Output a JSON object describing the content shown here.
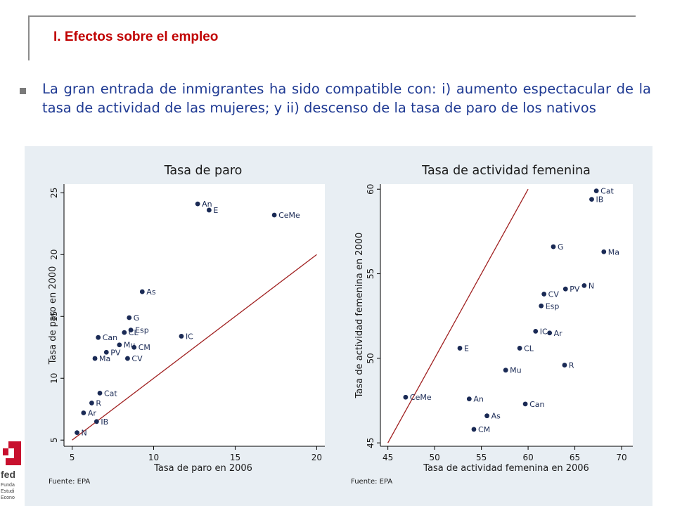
{
  "header": {
    "title": "I. Efectos sobre el empleo"
  },
  "bullet": {
    "text": "La gran entrada de inmigrantes ha sido compatible con: i) aumento espectacular de la tasa de actividad de las mujeres; y ii) descenso de la tasa de paro de los nativos"
  },
  "colors": {
    "title": "#c00000",
    "bullet_text": "#1f3a93",
    "panel_bg": "#e8eef3",
    "marker": "#1a2a55",
    "fit_line": "#a02020"
  },
  "logo": {
    "lines": [
      "fed",
      "Funda",
      "Estudi",
      "Econo"
    ]
  },
  "chart_data": [
    {
      "type": "scatter",
      "title": "Tasa de paro",
      "xlabel": "Tasa de paro en 2006",
      "ylabel": "Tasa de paro en 2000",
      "xlim": [
        4.5,
        20.5
      ],
      "ylim": [
        4.5,
        25.7
      ],
      "xticks": [
        5,
        10,
        15,
        20
      ],
      "yticks": [
        5,
        10,
        15,
        20,
        25
      ],
      "reference_line": {
        "x": [
          5,
          20
        ],
        "y": [
          5,
          20
        ]
      },
      "points": [
        {
          "label": "An",
          "x": 12.7,
          "y": 24.1
        },
        {
          "label": "E",
          "x": 13.4,
          "y": 23.6
        },
        {
          "label": "CeMe",
          "x": 17.4,
          "y": 23.2
        },
        {
          "label": "As",
          "x": 9.3,
          "y": 17.0
        },
        {
          "label": "G",
          "x": 8.5,
          "y": 14.9
        },
        {
          "label": "Esp",
          "x": 8.6,
          "y": 13.9
        },
        {
          "label": "CL",
          "x": 8.2,
          "y": 13.7
        },
        {
          "label": "IC",
          "x": 11.7,
          "y": 13.4
        },
        {
          "label": "Can",
          "x": 6.6,
          "y": 13.3
        },
        {
          "label": "Mu",
          "x": 7.9,
          "y": 12.7
        },
        {
          "label": "CM",
          "x": 8.8,
          "y": 12.5
        },
        {
          "label": "PV",
          "x": 7.1,
          "y": 12.1
        },
        {
          "label": "Ma",
          "x": 6.4,
          "y": 11.6
        },
        {
          "label": "CV",
          "x": 8.4,
          "y": 11.6
        },
        {
          "label": "Cat",
          "x": 6.7,
          "y": 8.8
        },
        {
          "label": "R",
          "x": 6.2,
          "y": 8.0
        },
        {
          "label": "Ar",
          "x": 5.7,
          "y": 7.2
        },
        {
          "label": "IB",
          "x": 6.5,
          "y": 6.5
        },
        {
          "label": "N",
          "x": 5.3,
          "y": 5.6
        }
      ],
      "source": "Fuente: EPA"
    },
    {
      "type": "scatter",
      "title": "Tasa de actividad femenina",
      "xlabel": "Tasa de actividad femenina en 2006",
      "ylabel": "Tasa de actividad femenina en 2000",
      "xlim": [
        44.2,
        71.2
      ],
      "ylim": [
        44.8,
        60.3
      ],
      "xticks": [
        45,
        50,
        55,
        60,
        65,
        70
      ],
      "yticks": [
        45,
        50,
        55,
        60
      ],
      "reference_line": {
        "x": [
          45,
          60
        ],
        "y": [
          45,
          60
        ]
      },
      "points": [
        {
          "label": "Cat",
          "x": 67.3,
          "y": 59.9
        },
        {
          "label": "IB",
          "x": 66.8,
          "y": 59.4
        },
        {
          "label": "G",
          "x": 62.7,
          "y": 56.6
        },
        {
          "label": "Ma",
          "x": 68.1,
          "y": 56.3
        },
        {
          "label": "N",
          "x": 66.0,
          "y": 54.3
        },
        {
          "label": "PV",
          "x": 64.0,
          "y": 54.1
        },
        {
          "label": "CV",
          "x": 61.7,
          "y": 53.8
        },
        {
          "label": "Esp",
          "x": 61.4,
          "y": 53.1
        },
        {
          "label": "IC",
          "x": 60.8,
          "y": 51.6
        },
        {
          "label": "Ar",
          "x": 62.3,
          "y": 51.5
        },
        {
          "label": "E",
          "x": 52.7,
          "y": 50.6
        },
        {
          "label": "CL",
          "x": 59.1,
          "y": 50.6
        },
        {
          "label": "R",
          "x": 63.9,
          "y": 49.6
        },
        {
          "label": "Mu",
          "x": 57.6,
          "y": 49.3
        },
        {
          "label": "CeMe",
          "x": 46.9,
          "y": 47.7
        },
        {
          "label": "An",
          "x": 53.7,
          "y": 47.6
        },
        {
          "label": "Can",
          "x": 59.7,
          "y": 47.3
        },
        {
          "label": "As",
          "x": 55.6,
          "y": 46.6
        },
        {
          "label": "CM",
          "x": 54.2,
          "y": 45.8
        }
      ],
      "source": "Fuente: EPA"
    }
  ]
}
